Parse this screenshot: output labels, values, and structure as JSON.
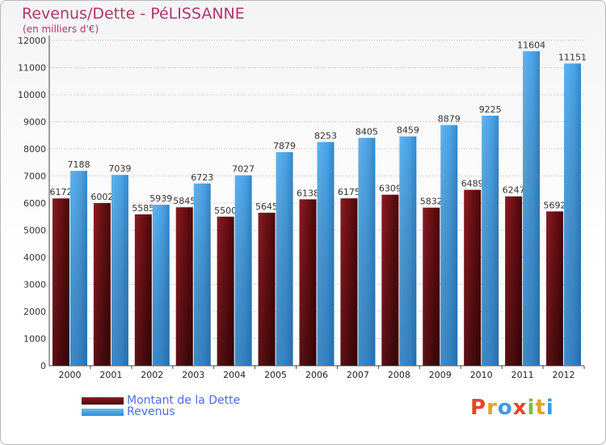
{
  "chart_data": {
    "type": "bar",
    "title": "Revenus/Dette - PéLISSANNE",
    "subtitle": "(en milliers d'€)",
    "categories": [
      "2000",
      "2001",
      "2002",
      "2003",
      "2004",
      "2005",
      "2006",
      "2007",
      "2008",
      "2009",
      "2010",
      "2011",
      "2012"
    ],
    "series": [
      {
        "name": "Montant de la Dette",
        "color": "#6b0f14",
        "values": [
          6172,
          6002,
          5585,
          5845,
          5500,
          5645,
          6138,
          6175,
          6309,
          5832,
          6489,
          6247,
          5692
        ]
      },
      {
        "name": "Revenus",
        "color": "#4aa3e6",
        "values": [
          7188,
          7039,
          5939,
          6723,
          7027,
          7879,
          8253,
          8405,
          8459,
          8879,
          9225,
          11604,
          11151
        ]
      }
    ],
    "yticks": [
      0,
      1000,
      2000,
      3000,
      4000,
      5000,
      6000,
      7000,
      8000,
      9000,
      10000,
      11000,
      12000
    ],
    "ylim": [
      0,
      12000
    ],
    "grid": "horizontal dotted",
    "legend_position": "bottom-left"
  },
  "logo": {
    "letters": [
      "P",
      "r",
      "o",
      "x",
      "i",
      "t",
      "i"
    ],
    "colors": [
      "#e8432b",
      "#e8a020",
      "#3d9be0",
      "#e8432b",
      "#7cc03a",
      "#e8a020",
      "#3d9be0"
    ]
  }
}
